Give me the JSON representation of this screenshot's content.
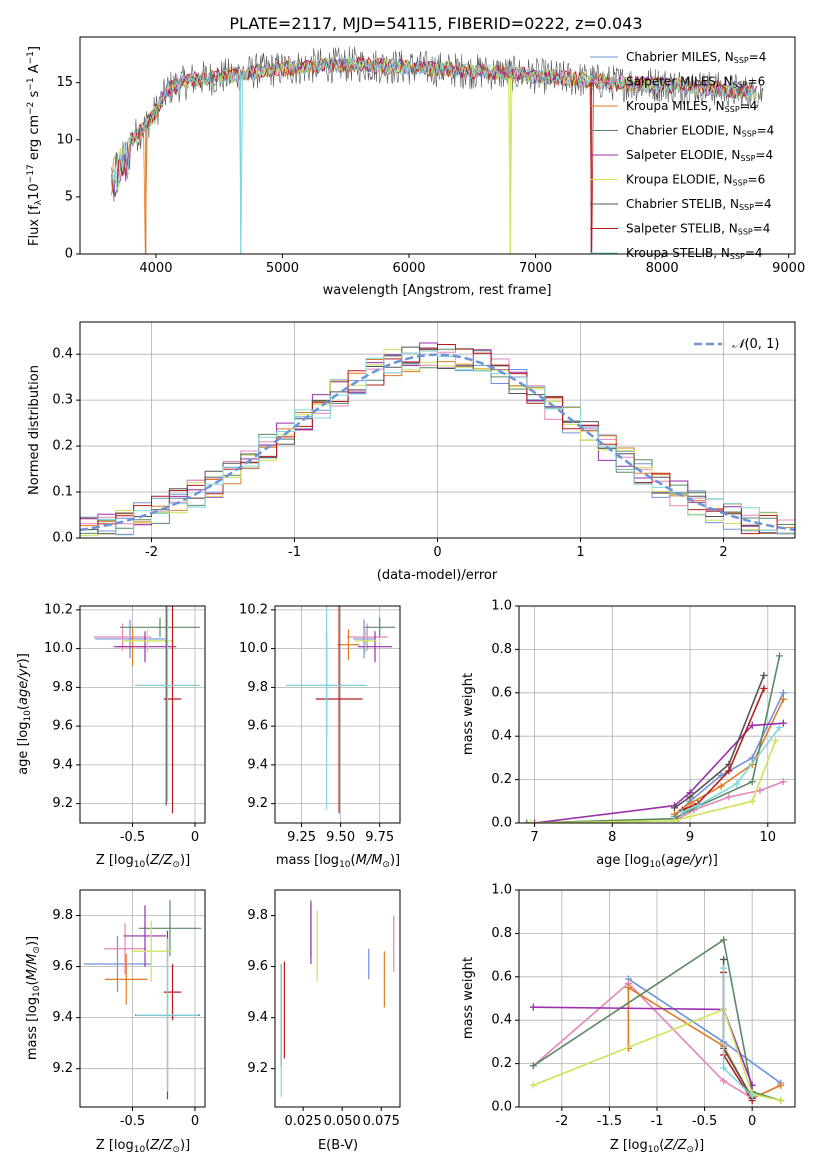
{
  "figure": {
    "title": "PLATE=2117, MJD=54115, FIBERID=0222, z=0.043",
    "series_colors": [
      "#6f93d8",
      "#e784b8",
      "#e07b22",
      "#5b8a63",
      "#9b2fae",
      "#cde35a",
      "#555555",
      "#b51c1c",
      "#7fd6dc"
    ]
  },
  "chart_data": [
    {
      "id": "spectrum",
      "type": "line",
      "xlabel": "wavelength [Angstrom, rest frame]",
      "ylabel": "Flux [f",
      "xlim": [
        3400,
        9050
      ],
      "ylim": [
        0,
        19
      ],
      "xticks": [
        4000,
        5000,
        6000,
        7000,
        8000,
        9000
      ],
      "yticks": [
        0,
        5,
        10,
        15
      ],
      "legend_position": "upper-right",
      "legend": [
        {
          "name": "Chabrier MILES, N",
          "ssp": "=4"
        },
        {
          "name": "Salpeter MILES, N",
          "ssp": "=6"
        },
        {
          "name": "Kroupa MILES, N",
          "ssp": "=4"
        },
        {
          "name": "Chabrier ELODIE, N",
          "ssp": "=4"
        },
        {
          "name": "Salpeter ELODIE, N",
          "ssp": "=4"
        },
        {
          "name": "Kroupa ELODIE, N",
          "ssp": "=6"
        },
        {
          "name": "Chabrier STELIB, N",
          "ssp": "=4"
        },
        {
          "name": "Salpeter STELIB, N",
          "ssp": "=4"
        },
        {
          "name": "Kroupa STELIB, N",
          "ssp": "=4"
        }
      ],
      "continuum_points": [
        [
          3650,
          8
        ],
        [
          3750,
          9.5
        ],
        [
          3900,
          11
        ],
        [
          4000,
          12.5
        ],
        [
          4100,
          14.5
        ],
        [
          4300,
          15.3
        ],
        [
          4500,
          15.5
        ],
        [
          4800,
          16
        ],
        [
          5000,
          16.2
        ],
        [
          5300,
          16.5
        ],
        [
          5600,
          16.6
        ],
        [
          5900,
          16.4
        ],
        [
          6200,
          16.2
        ],
        [
          6500,
          16
        ],
        [
          6800,
          15.8
        ],
        [
          7200,
          15.4
        ],
        [
          7600,
          15
        ],
        [
          8000,
          14.8
        ],
        [
          8400,
          14.5
        ],
        [
          8800,
          14
        ]
      ],
      "dropouts": [
        {
          "x": 3920,
          "series": 2
        },
        {
          "x": 4670,
          "series": 8
        },
        {
          "x": 6800,
          "series": 5
        },
        {
          "x": 7440,
          "series": 7
        }
      ]
    },
    {
      "id": "residuals",
      "type": "histogram",
      "xlabel": "(data-model)/error",
      "ylabel": "Normed distribution",
      "xlim": [
        -2.5,
        2.5
      ],
      "ylim": [
        0,
        0.47
      ],
      "xticks": [
        -2,
        -1,
        0,
        1,
        2
      ],
      "yticks": [
        0.0,
        0.1,
        0.2,
        0.3,
        0.4
      ],
      "grid": true,
      "legend_position": "upper-right",
      "normal_curve_label": "(0, 1)",
      "bins": 40
    },
    {
      "id": "age-vs-Z",
      "type": "errorbar",
      "xlabel": "Z [log",
      "ylabel": "age  [log",
      "xlim": [
        -0.92,
        0.08
      ],
      "ylim": [
        9.1,
        10.22
      ],
      "xticks": [
        -0.5,
        0.0
      ],
      "yticks": [
        9.2,
        9.4,
        9.6,
        9.8,
        10.0,
        10.2
      ],
      "grid": true,
      "points": [
        {
          "x": -0.52,
          "y": 10.05,
          "xerr": 0.28,
          "yerr": 0.1
        },
        {
          "x": -0.58,
          "y": 10.06,
          "xerr": 0.23,
          "yerr": 0.07
        },
        {
          "x": -0.5,
          "y": 10.01,
          "xerr": 0.12,
          "yerr": 0.1
        },
        {
          "x": -0.28,
          "y": 10.11,
          "xerr": 0.32,
          "yerr": 0.05
        },
        {
          "x": -0.4,
          "y": 10.01,
          "xerr": 0.25,
          "yerr": 0.08
        },
        {
          "x": -0.38,
          "y": 10.04,
          "xerr": 0.2,
          "yerr": 0.06
        },
        {
          "x": -0.23,
          "y": 9.81,
          "xerr": 0.25,
          "yerr": 0.62
        },
        {
          "x": -0.18,
          "y": 9.74,
          "xerr": 0.07,
          "yerr": 0.59
        },
        {
          "x": -0.22,
          "y": 9.81,
          "xerr": 0.26,
          "yerr": 0.6
        }
      ]
    },
    {
      "id": "age-vs-mass",
      "type": "errorbar",
      "xlabel": "mass [log",
      "ylabel": "",
      "xlim": [
        9.08,
        9.88
      ],
      "ylim": [
        9.1,
        10.22
      ],
      "xticks": [
        9.25,
        9.5,
        9.75
      ],
      "xtick_labels": [
        "9.25",
        "9.50",
        "9.75"
      ],
      "yticks": [
        9.2,
        9.4,
        9.6,
        9.8,
        10.0,
        10.2
      ],
      "grid": true,
      "points": [
        {
          "x": 9.65,
          "y": 10.05,
          "xerr": 0.07,
          "yerr": 0.1
        },
        {
          "x": 9.67,
          "y": 10.06,
          "xerr": 0.13,
          "yerr": 0.07
        },
        {
          "x": 9.55,
          "y": 10.02,
          "xerr": 0.07,
          "yerr": 0.08
        },
        {
          "x": 9.75,
          "y": 10.11,
          "xerr": 0.1,
          "yerr": 0.05
        },
        {
          "x": 9.72,
          "y": 10.01,
          "xerr": 0.11,
          "yerr": 0.08
        },
        {
          "x": 9.66,
          "y": 10.04,
          "xerr": 0.07,
          "yerr": 0.06
        },
        {
          "x": 9.41,
          "y": 9.81,
          "xerr": 0.25,
          "yerr": 0.27
        },
        {
          "x": 9.49,
          "y": 9.74,
          "xerr": 0.15,
          "yerr": 0.59
        },
        {
          "x": 9.41,
          "y": 9.81,
          "xerr": 0.26,
          "yerr": 0.64
        }
      ]
    },
    {
      "id": "mass-weight-vs-age",
      "type": "line",
      "xlabel": "age  [log",
      "ylabel": "mass weight",
      "xlim": [
        6.8,
        10.35
      ],
      "ylim": [
        0,
        1
      ],
      "xticks": [
        7,
        8,
        9,
        10
      ],
      "yticks": [
        0.0,
        0.2,
        0.4,
        0.6,
        0.8,
        1.0
      ],
      "grid": true,
      "series": [
        {
          "x": [
            8.8,
            9.0,
            9.4,
            9.8,
            10.2
          ],
          "y": [
            0.03,
            0.1,
            0.22,
            0.3,
            0.6
          ]
        },
        {
          "x": [
            8.85,
            9.05,
            9.5,
            9.9,
            10.2
          ],
          "y": [
            0.02,
            0.06,
            0.12,
            0.15,
            0.19
          ]
        },
        {
          "x": [
            8.8,
            9.0,
            9.4,
            9.8,
            10.2
          ],
          "y": [
            0.04,
            0.09,
            0.17,
            0.27,
            0.57
          ]
        },
        {
          "x": [
            6.9,
            8.8,
            9.0,
            9.8,
            10.15
          ],
          "y": [
            0.0,
            0.02,
            0.06,
            0.19,
            0.77
          ]
        },
        {
          "x": [
            7.0,
            8.8,
            9.0,
            9.8,
            10.2
          ],
          "y": [
            0.0,
            0.08,
            0.14,
            0.45,
            0.46
          ]
        },
        {
          "x": [
            6.95,
            8.8,
            9.0,
            9.8,
            10.1
          ],
          "y": [
            0.0,
            0.01,
            0.03,
            0.1,
            0.38
          ]
        },
        {
          "x": [
            8.8,
            9.0,
            9.5,
            9.95
          ],
          "y": [
            0.07,
            0.12,
            0.27,
            0.68
          ]
        },
        {
          "x": [
            8.9,
            9.1,
            9.5,
            9.95
          ],
          "y": [
            0.06,
            0.09,
            0.24,
            0.62
          ]
        },
        {
          "x": [
            8.9,
            9.1,
            9.6,
            10.15
          ],
          "y": [
            0.05,
            0.08,
            0.18,
            0.44
          ]
        }
      ]
    },
    {
      "id": "mass-vs-Z",
      "type": "errorbar",
      "xlabel": "Z [log",
      "ylabel": "mass [log",
      "xlim": [
        -0.92,
        0.08
      ],
      "ylim": [
        9.05,
        9.9
      ],
      "xticks": [
        -0.5,
        0.0
      ],
      "yticks": [
        9.2,
        9.4,
        9.6,
        9.8
      ],
      "grid": true,
      "points": [
        {
          "x": -0.62,
          "y": 9.61,
          "xerr": 0.27,
          "yerr": 0.11
        },
        {
          "x": -0.56,
          "y": 9.67,
          "xerr": 0.17,
          "yerr": 0.1
        },
        {
          "x": -0.55,
          "y": 9.55,
          "xerr": 0.17,
          "yerr": 0.1
        },
        {
          "x": -0.2,
          "y": 9.75,
          "xerr": 0.25,
          "yerr": 0.11
        },
        {
          "x": -0.4,
          "y": 9.72,
          "xerr": 0.17,
          "yerr": 0.12
        },
        {
          "x": -0.35,
          "y": 9.66,
          "xerr": 0.16,
          "yerr": 0.12
        },
        {
          "x": -0.22,
          "y": 9.41,
          "xerr": 0.26,
          "yerr": 0.33
        },
        {
          "x": -0.18,
          "y": 9.5,
          "xerr": 0.07,
          "yerr": 0.11
        },
        {
          "x": -0.22,
          "y": 9.41,
          "xerr": 0.25,
          "yerr": 0.3
        }
      ]
    },
    {
      "id": "mass-vs-EBV",
      "type": "errorbar",
      "xlabel": "E(B-V)",
      "ylabel": "",
      "xlim": [
        0.007,
        0.087
      ],
      "ylim": [
        9.05,
        9.9
      ],
      "xticks": [
        0.025,
        0.05,
        0.075
      ],
      "xtick_labels": [
        "0.025",
        "0.050",
        "0.075"
      ],
      "yticks": [
        9.2,
        9.4,
        9.6,
        9.8
      ],
      "grid": false,
      "points": [
        {
          "x": 0.067,
          "y": 9.61,
          "xerr": 0,
          "yerr": 0.06
        },
        {
          "x": 0.083,
          "y": 9.69,
          "xerr": 0,
          "yerr": 0.11
        },
        {
          "x": 0.077,
          "y": 9.55,
          "xerr": 0,
          "yerr": 0.11
        },
        {
          "x": 0.03,
          "y": 9.75,
          "xerr": 0,
          "yerr": 0.11
        },
        {
          "x": 0.03,
          "y": 9.73,
          "xerr": 0,
          "yerr": 0.12
        },
        {
          "x": 0.034,
          "y": 9.68,
          "xerr": 0,
          "yerr": 0.14
        },
        {
          "x": 0.011,
          "y": 9.41,
          "xerr": 0,
          "yerr": 0.2
        },
        {
          "x": 0.013,
          "y": 9.43,
          "xerr": 0,
          "yerr": 0.19
        },
        {
          "x": 0.011,
          "y": 9.35,
          "xerr": 0,
          "yerr": 0.26
        }
      ]
    },
    {
      "id": "mass-weight-vs-Z",
      "type": "line",
      "xlabel": "Z [log",
      "ylabel": "mass weight",
      "xlim": [
        -2.45,
        0.45
      ],
      "ylim": [
        0,
        1
      ],
      "xticks": [
        -2.0,
        -1.5,
        -1.0,
        -0.5,
        0.0
      ],
      "yticks": [
        0.0,
        0.2,
        0.4,
        0.6,
        0.8,
        1.0
      ],
      "grid": true,
      "series": [
        {
          "x": [
            -1.3,
            -0.3,
            0.3
          ],
          "y": [
            0.59,
            0.3,
            0.11
          ]
        },
        {
          "x": [
            -2.3,
            -1.3,
            -0.3,
            0.0,
            0.3
          ],
          "y": [
            0.19,
            0.57,
            0.12,
            0.04,
            0.1
          ]
        },
        {
          "x": [
            -1.3,
            -1.3,
            -0.3,
            0.0,
            0.3
          ],
          "y": [
            0.27,
            0.55,
            0.28,
            0.04,
            0.1
          ]
        },
        {
          "x": [
            -2.3,
            -0.3,
            0.0,
            0.3
          ],
          "y": [
            0.19,
            0.77,
            0.07,
            0.03
          ]
        },
        {
          "x": [
            -2.3,
            -0.3,
            0.0
          ],
          "y": [
            0.46,
            0.45,
            0.1
          ]
        },
        {
          "x": [
            -2.3,
            -0.3,
            0.0,
            0.3
          ],
          "y": [
            0.1,
            0.45,
            0.06,
            0.03
          ]
        },
        {
          "x": [
            -0.3,
            -0.3,
            0.0
          ],
          "y": [
            0.68,
            0.27,
            0.04
          ]
        },
        {
          "x": [
            -0.3,
            -0.3,
            0.0
          ],
          "y": [
            0.62,
            0.24,
            0.03
          ]
        },
        {
          "x": [
            -0.3,
            -0.3,
            0.0
          ],
          "y": [
            0.64,
            0.18,
            0.05
          ]
        }
      ]
    }
  ]
}
